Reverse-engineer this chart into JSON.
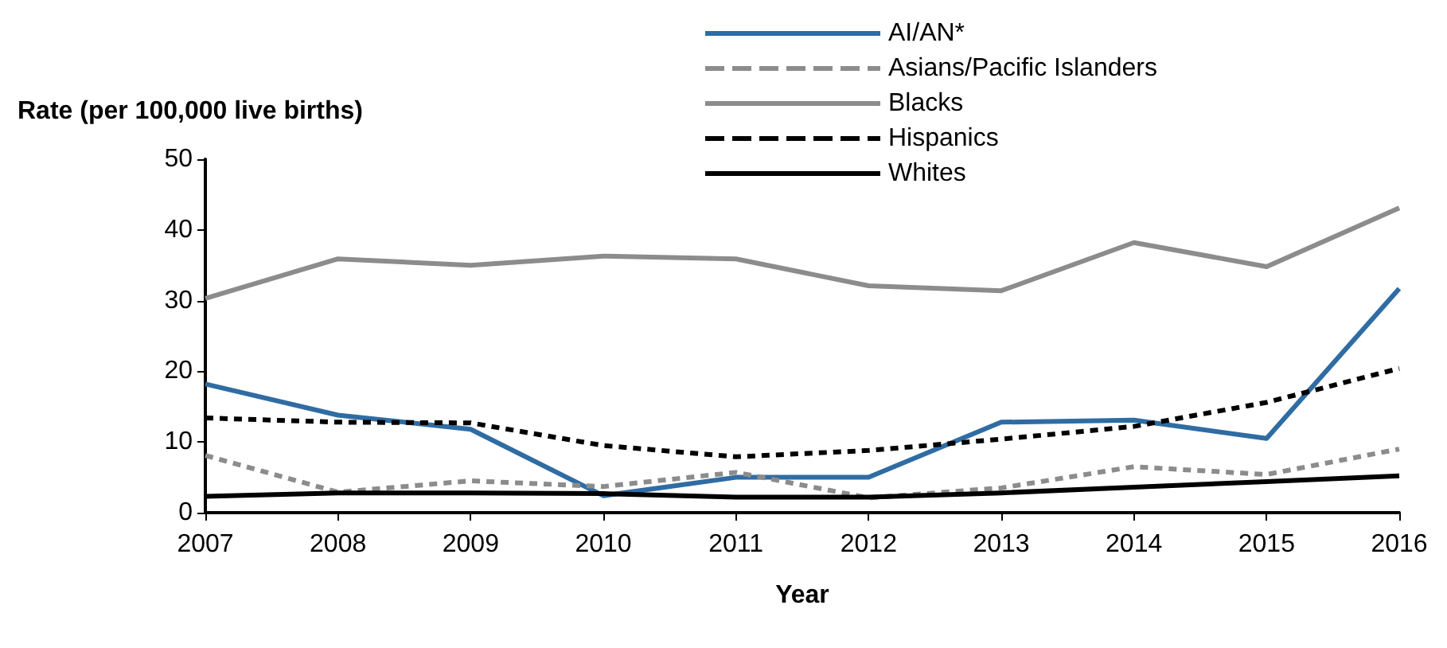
{
  "chart_data": {
    "type": "line",
    "xlabel": "Year",
    "ylabel": "Rate (per 100,000 live births)",
    "categories": [
      "2007",
      "2008",
      "2009",
      "2010",
      "2011",
      "2012",
      "2013",
      "2014",
      "2015",
      "2016"
    ],
    "ylim": [
      0,
      50
    ],
    "yticks": [
      0,
      10,
      20,
      30,
      40,
      50
    ],
    "grid": false,
    "legend": "top",
    "marker": "none",
    "series": [
      {
        "name": "AI/AN*",
        "color": "#2f6ca3",
        "line_style": "solid",
        "values": [
          18.2,
          13.8,
          11.8,
          2.4,
          5.0,
          5.0,
          12.8,
          13.1,
          10.5,
          31.7
        ]
      },
      {
        "name": "Asians/Pacific Islanders",
        "color": "#8c8c8c",
        "line_style": "dashed",
        "values": [
          8.1,
          2.9,
          4.5,
          3.7,
          5.7,
          2.1,
          3.5,
          6.5,
          5.4,
          9.0
        ]
      },
      {
        "name": "Blacks",
        "color": "#8c8c8c",
        "line_style": "solid",
        "values": [
          30.3,
          35.9,
          35.0,
          36.3,
          35.9,
          32.1,
          31.4,
          38.2,
          34.8,
          43.1
        ]
      },
      {
        "name": "Hispanics",
        "color": "#000000",
        "line_style": "dashed",
        "values": [
          13.4,
          12.8,
          12.7,
          9.5,
          7.9,
          8.8,
          10.4,
          12.2,
          15.6,
          20.4
        ]
      },
      {
        "name": "Whites",
        "color": "#000000",
        "line_style": "solid",
        "values": [
          2.3,
          2.8,
          2.8,
          2.7,
          2.2,
          2.2,
          2.8,
          3.6,
          4.4,
          5.2
        ]
      }
    ]
  }
}
